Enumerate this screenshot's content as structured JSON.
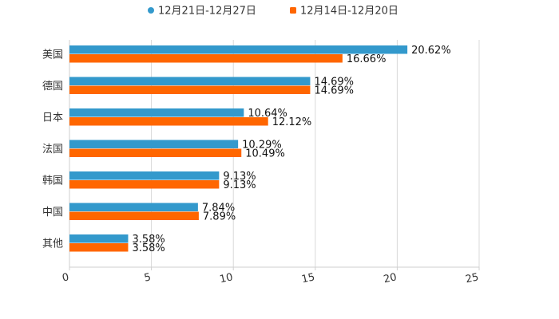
{
  "chart_data": {
    "type": "bar",
    "orientation": "horizontal",
    "categories": [
      "美国",
      "德国",
      "日本",
      "法国",
      "韩国",
      "中国",
      "其他"
    ],
    "series": [
      {
        "name": "12月21日-12月27日",
        "color": "#3399cc",
        "values": [
          20.62,
          14.69,
          10.64,
          10.29,
          9.13,
          7.84,
          3.58
        ],
        "labels": [
          "20.62%",
          "14.69%",
          "10.64%",
          "10.29%",
          "9.13%",
          "7.84%",
          "3.58%"
        ]
      },
      {
        "name": "12月14日-12月20日",
        "color": "#ff6600",
        "values": [
          16.66,
          14.69,
          12.12,
          10.49,
          9.13,
          7.89,
          3.58
        ],
        "labels": [
          "16.66%",
          "14.69%",
          "12.12%",
          "10.49%",
          "9.13%",
          "7.89%",
          "3.58%"
        ]
      }
    ],
    "xlim": [
      0,
      25
    ],
    "xticks": [
      0,
      5,
      10,
      15,
      20,
      25
    ],
    "xtick_labels": [
      "0",
      "5",
      "10",
      "15",
      "20",
      "25"
    ],
    "grid": true,
    "legend_position": "top-center"
  }
}
